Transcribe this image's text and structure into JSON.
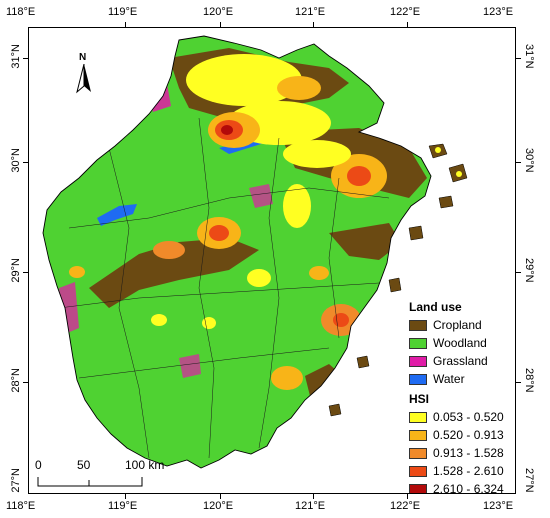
{
  "map": {
    "lon_labels": [
      "118°E",
      "119°E",
      "120°E",
      "121°E",
      "122°E",
      "123°E"
    ],
    "lat_labels": [
      "31°N",
      "30°N",
      "29°N",
      "28°N",
      "27°N"
    ],
    "north_letter": "N",
    "legend": {
      "land_use_title": "Land use",
      "land_use": [
        {
          "label": "Cropland",
          "color": "#6b4a12"
        },
        {
          "label": "Woodland",
          "color": "#4fd232"
        },
        {
          "label": "Grassland",
          "color": "#e01ca7"
        },
        {
          "label": "Water",
          "color": "#1f6bf2"
        }
      ],
      "hsi_title": "HSI",
      "hsi": [
        {
          "label": "0.053 - 0.520",
          "color": "#ffff22"
        },
        {
          "label": "0.520 - 0.913",
          "color": "#f8b418"
        },
        {
          "label": "0.913 - 1.528",
          "color": "#f08a2a"
        },
        {
          "label": "1.528 - 2.610",
          "color": "#ec4a16"
        },
        {
          "label": "2.610 - 6.324",
          "color": "#b20a0a"
        }
      ]
    },
    "scale": {
      "labels": [
        "0",
        "50",
        "100 km"
      ]
    }
  }
}
